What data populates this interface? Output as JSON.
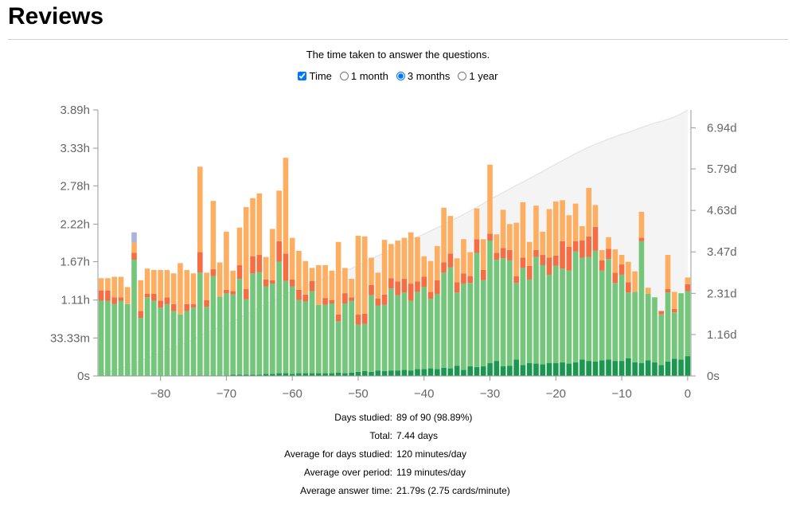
{
  "header": {
    "title": "Reviews"
  },
  "subtitle": "The time taken to answer the questions.",
  "controls": {
    "time_label": "Time",
    "time_checked": true,
    "ranges": [
      {
        "label": "1 month",
        "selected": false
      },
      {
        "label": "3 months",
        "selected": true
      },
      {
        "label": "1 year",
        "selected": false
      }
    ]
  },
  "stats": [
    {
      "label": "Days studied:",
      "value": "89 of 90 (98.89%)"
    },
    {
      "label": "Total:",
      "value": "7.44 days"
    },
    {
      "label": "Average for days studied:",
      "value": "120 minutes/day"
    },
    {
      "label": "Average over period:",
      "value": "119 minutes/day"
    },
    {
      "label": "Average answer time:",
      "value": "21.79s (2.75 cards/minute)"
    }
  ],
  "chart_data": {
    "type": "bar",
    "stacked": true,
    "x": [
      -89,
      -88,
      -87,
      -86,
      -85,
      -84,
      -83,
      -82,
      -81,
      -80,
      -79,
      -78,
      -77,
      -76,
      -75,
      -74,
      -73,
      -72,
      -71,
      -70,
      -69,
      -68,
      -67,
      -66,
      -65,
      -64,
      -63,
      -62,
      -61,
      -60,
      -59,
      -58,
      -57,
      -56,
      -55,
      -54,
      -53,
      -52,
      -51,
      -50,
      -49,
      -48,
      -47,
      -46,
      -45,
      -44,
      -43,
      -42,
      -41,
      -40,
      -39,
      -38,
      -37,
      -36,
      -35,
      -34,
      -33,
      -32,
      -31,
      -30,
      -29,
      -28,
      -27,
      -26,
      -25,
      -24,
      -23,
      -22,
      -21,
      -20,
      -19,
      -18,
      -17,
      -16,
      -15,
      -14,
      -13,
      -12,
      -11,
      -10,
      -9,
      -8,
      -7,
      -6,
      -5,
      -4,
      -3,
      -2,
      -1,
      0
    ],
    "xlim": [
      -89,
      0
    ],
    "xticks": [
      -80,
      -70,
      -60,
      -50,
      -40,
      -30,
      -20,
      -10,
      0
    ],
    "y_unit": "hours",
    "ylim": [
      0,
      3.89
    ],
    "yticks": [
      {
        "value": 0,
        "label": "0s"
      },
      {
        "value": 0.5556,
        "label": "33.33m"
      },
      {
        "value": 1.11,
        "label": "1.11h"
      },
      {
        "value": 1.67,
        "label": "1.67h"
      },
      {
        "value": 2.22,
        "label": "2.22h"
      },
      {
        "value": 2.78,
        "label": "2.78h"
      },
      {
        "value": 3.33,
        "label": "3.33h"
      },
      {
        "value": 3.89,
        "label": "3.89h"
      }
    ],
    "y2_unit": "days",
    "y2lim": [
      0,
      7.44
    ],
    "y2ticks": [
      {
        "value": 0,
        "label": "0s"
      },
      {
        "value": 1.16,
        "label": "1.16d"
      },
      {
        "value": 2.31,
        "label": "2.31d"
      },
      {
        "value": 3.47,
        "label": "3.47d"
      },
      {
        "value": 4.63,
        "label": "4.63d"
      },
      {
        "value": 5.79,
        "label": "5.79d"
      },
      {
        "value": 6.94,
        "label": "6.94d"
      }
    ],
    "series": [
      {
        "color": "#1a9850",
        "values": [
          0,
          0,
          0,
          0,
          0,
          0,
          0,
          0,
          0,
          0,
          0,
          0,
          0,
          0,
          0,
          0.01,
          0.01,
          0.01,
          0.01,
          0.01,
          0.02,
          0.02,
          0.02,
          0.02,
          0.02,
          0.03,
          0.03,
          0.04,
          0.04,
          0.03,
          0.04,
          0.04,
          0.04,
          0.04,
          0.04,
          0.04,
          0.05,
          0.04,
          0.05,
          0.06,
          0.07,
          0.06,
          0.08,
          0.07,
          0.08,
          0.08,
          0.09,
          0.08,
          0.1,
          0.1,
          0.11,
          0.1,
          0.12,
          0.11,
          0.15,
          0.09,
          0.14,
          0.13,
          0.14,
          0.19,
          0.22,
          0.14,
          0.15,
          0.24,
          0.16,
          0.19,
          0.18,
          0.17,
          0.19,
          0.19,
          0.2,
          0.18,
          0.2,
          0.24,
          0.22,
          0.21,
          0.23,
          0.24,
          0.22,
          0.22,
          0.26,
          0.2,
          0.19,
          0.23,
          0.2,
          0.16,
          0.21,
          0.25,
          0.24,
          0.29
        ]
      },
      {
        "color": "#74c67a",
        "values": [
          1.1,
          1.1,
          1.05,
          1.1,
          1.05,
          1.7,
          0.85,
          1.15,
          1.1,
          1.0,
          1.05,
          0.95,
          0.9,
          0.95,
          1.0,
          1.5,
          1.0,
          1.45,
          1.15,
          1.2,
          1.17,
          1.4,
          1.1,
          1.48,
          1.5,
          1.28,
          1.32,
          1.63,
          1.35,
          1.28,
          1.07,
          1.05,
          1.2,
          1.0,
          1.0,
          1.02,
          0.75,
          1.02,
          1.05,
          0.69,
          0.69,
          1.12,
          0.95,
          0.97,
          1.2,
          1.1,
          1.13,
          1.02,
          1.13,
          1.2,
          1.02,
          1.1,
          1.39,
          1.48,
          1.07,
          1.26,
          1.22,
          1.67,
          1.26,
          1.79,
          1.48,
          1.58,
          1.54,
          1.12,
          1.42,
          1.22,
          1.56,
          1.45,
          1.29,
          1.42,
          1.37,
          1.36,
          1.62,
          1.49,
          1.52,
          1.62,
          1.31,
          1.47,
          1.14,
          1.26,
          0.96,
          1.03,
          1.78,
          0.97,
          0.95,
          0.74,
          1.01,
          0.68,
          0.97,
          0.95
        ]
      },
      {
        "color": "#f46d43",
        "values": [
          0.15,
          0.15,
          0.1,
          0.05,
          0,
          0.1,
          0.1,
          0.05,
          0.1,
          0.1,
          0.1,
          0.1,
          0,
          0.1,
          0.05,
          0.3,
          0.1,
          0.1,
          0,
          0.05,
          0.05,
          0.2,
          0.15,
          0.25,
          0.25,
          0.1,
          0.05,
          0.3,
          0.4,
          0.1,
          0.15,
          0.1,
          0.15,
          0,
          0.1,
          0.05,
          0.1,
          0.15,
          0.05,
          0.15,
          0.15,
          0.15,
          0.1,
          0.15,
          0.15,
          0.2,
          0.2,
          0.25,
          0.15,
          0.15,
          0.1,
          0.2,
          0.15,
          0.2,
          0.15,
          0.15,
          0.1,
          0.2,
          0.15,
          0.1,
          0.1,
          0.15,
          0.15,
          0.1,
          0.15,
          0.2,
          0.1,
          0.15,
          0.25,
          0.15,
          0.4,
          0.35,
          0.15,
          0.25,
          0.3,
          0.35,
          0.15,
          0.15,
          0.15,
          0.15,
          0.15,
          0,
          0.05,
          0,
          0,
          0.05,
          0.05,
          0.05,
          0,
          0.1
        ]
      },
      {
        "color": "#fdae61",
        "values": [
          0.18,
          0.18,
          0.3,
          0.3,
          0.25,
          0.15,
          0.45,
          0.37,
          0.35,
          0.45,
          0.4,
          0.45,
          0.75,
          0.5,
          0.45,
          1.25,
          0.4,
          1.0,
          0.5,
          0.85,
          0.3,
          0.55,
          1.2,
          0.85,
          0.9,
          0.33,
          0.75,
          0.74,
          1.4,
          0.61,
          0.57,
          0.49,
          0.19,
          0.58,
          0.48,
          0.43,
          1.06,
          0.37,
          0.27,
          1.15,
          1.13,
          0.4,
          0.38,
          0.8,
          0.5,
          0.6,
          0.6,
          0.75,
          0.65,
          0.3,
          0.45,
          0.5,
          0.8,
          0.55,
          0.35,
          0.5,
          0.35,
          0.45,
          0.45,
          1.01,
          0.27,
          0.56,
          0.38,
          0.78,
          0.81,
          0.35,
          0.65,
          0.34,
          0.71,
          0.79,
          0.6,
          0.46,
          0.55,
          0.21,
          0.71,
          0.32,
          0.15,
          0.17,
          0.34,
          0.14,
          0.3,
          0.3,
          0.38,
          0.09,
          0,
          0,
          0.5,
          0.25,
          0,
          0.1
        ]
      },
      {
        "color": "#aab4d8",
        "values": [
          0,
          0,
          0,
          0,
          0,
          0.15,
          0,
          0,
          0,
          0,
          0,
          0,
          0,
          0,
          0,
          0,
          0,
          0,
          0,
          0,
          0,
          0,
          0,
          0,
          0,
          0,
          0,
          0,
          0,
          0,
          0,
          0,
          0,
          0,
          0,
          0,
          0,
          0,
          0,
          0,
          0,
          0,
          0,
          0,
          0,
          0,
          0,
          0,
          0,
          0,
          0,
          0,
          0,
          0,
          0,
          0,
          0,
          0,
          0,
          0,
          0,
          0,
          0,
          0,
          0,
          0,
          0,
          0,
          0,
          0,
          0,
          0,
          0,
          0,
          0,
          0,
          0,
          0,
          0,
          0,
          0,
          0,
          0,
          0,
          0,
          0,
          0,
          0,
          0,
          0
        ]
      }
    ],
    "cumulative": {
      "axis": "y2",
      "values": [
        0.05,
        0.1,
        0.16,
        0.22,
        0.28,
        0.36,
        0.43,
        0.5,
        0.57,
        0.65,
        0.72,
        0.79,
        0.87,
        0.94,
        1.02,
        1.13,
        1.21,
        1.29,
        1.37,
        1.44,
        1.52,
        1.63,
        1.72,
        1.82,
        1.93,
        2.01,
        2.09,
        2.2,
        2.29,
        2.37,
        2.45,
        2.52,
        2.59,
        2.66,
        2.73,
        2.8,
        2.87,
        2.94,
        3.01,
        3.1,
        3.19,
        3.28,
        3.36,
        3.45,
        3.54,
        3.62,
        3.71,
        3.8,
        3.89,
        3.97,
        4.06,
        4.14,
        4.24,
        4.34,
        4.42,
        4.52,
        4.62,
        4.72,
        4.82,
        4.95,
        5.03,
        5.13,
        5.23,
        5.33,
        5.42,
        5.52,
        5.62,
        5.72,
        5.82,
        5.92,
        6.02,
        6.12,
        6.22,
        6.31,
        6.4,
        6.48,
        6.55,
        6.63,
        6.69,
        6.76,
        6.81,
        6.88,
        6.95,
        7.01,
        7.08,
        7.12,
        7.18,
        7.24,
        7.33,
        7.44
      ],
      "line_color": "#e3e3e3",
      "fill_color": "#f4f4f4"
    }
  }
}
